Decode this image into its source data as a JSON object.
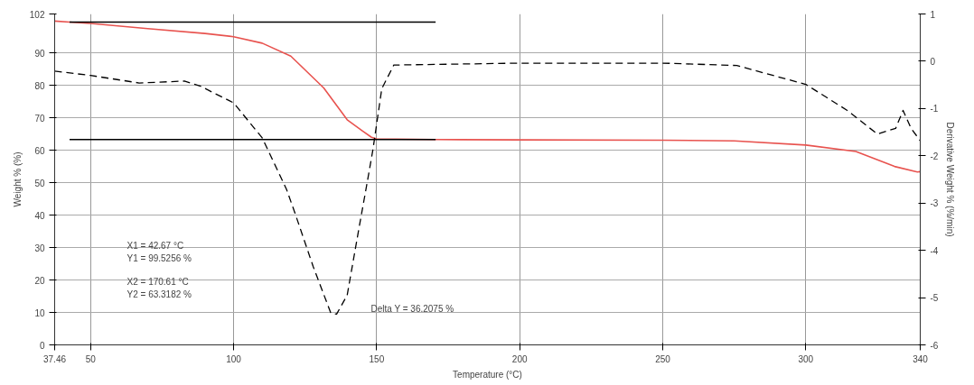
{
  "chart_data": {
    "type": "line",
    "xlabel": "Temperature (°C)",
    "ylabel": "Weight % (%)",
    "y2label": "Derivative Weight % (%/min)",
    "xlim": [
      37.46,
      340
    ],
    "xticks": [
      37.46,
      50,
      100,
      150,
      200,
      250,
      300,
      340
    ],
    "ylim": [
      0,
      102
    ],
    "yticks": [
      0,
      10,
      20,
      30,
      40,
      50,
      60,
      70,
      80,
      90,
      102
    ],
    "y2lim": [
      -6,
      1
    ],
    "y2ticks": [
      -6,
      -5,
      -4,
      -3,
      -2,
      -1,
      0,
      1
    ],
    "grid": true,
    "marker": "none",
    "series": [
      {
        "color": "#e8534f",
        "line_style": "solid",
        "x": [
          37.46,
          42.67,
          50,
          70,
          90,
          100,
          110,
          120,
          131.5,
          139.7,
          145,
          148.2,
          150,
          170.61,
          200,
          250,
          275,
          300,
          317.5,
          331,
          339,
          340
        ],
        "values": [
          99.8,
          99.5,
          99.1,
          97.5,
          96,
          95,
          93,
          89,
          79.2,
          69.4,
          66,
          64,
          63.5,
          63.3,
          63.2,
          63.1,
          62.9,
          61.6,
          59.6,
          55,
          53.3,
          53.4
        ]
      },
      {
        "color": "#000000",
        "line_style": "dashed",
        "axis": "y2",
        "x": [
          37.46,
          50,
          67,
          82.8,
          88.5,
          100,
          110,
          118.5,
          121.5,
          127.8,
          134,
          136,
          139.7,
          143.8,
          147,
          148.7,
          151.8,
          156,
          200,
          250,
          275.9,
          300,
          314.5,
          325,
          331.4,
          334,
          336.8,
          340
        ],
        "values": [
          -0.21,
          -0.3,
          -0.46,
          -0.42,
          -0.53,
          -0.88,
          -1.62,
          -2.71,
          -3.22,
          -4.34,
          -5.33,
          -5.35,
          -4.95,
          -3.54,
          -2.46,
          -1.87,
          -0.58,
          -0.08,
          -0.04,
          -0.04,
          -0.09,
          -0.49,
          -1.04,
          -1.54,
          -1.42,
          -1.04,
          -1.42,
          -1.68
        ]
      },
      {
        "color": "#000000",
        "line_style": "solid",
        "x": [
          42.67,
          170.61
        ],
        "values": [
          99.5,
          99.5
        ]
      },
      {
        "color": "#000000",
        "line_style": "solid",
        "x": [
          42.67,
          170.61
        ],
        "values": [
          63.3,
          63.3
        ]
      }
    ],
    "annotations": [
      "X1 = 42.67 °C",
      "Y1 = 99.5256 %",
      "X2 = 170.61 °C",
      "Y2 = 63.3182 %",
      "Delta Y = 36.2075 %"
    ]
  }
}
